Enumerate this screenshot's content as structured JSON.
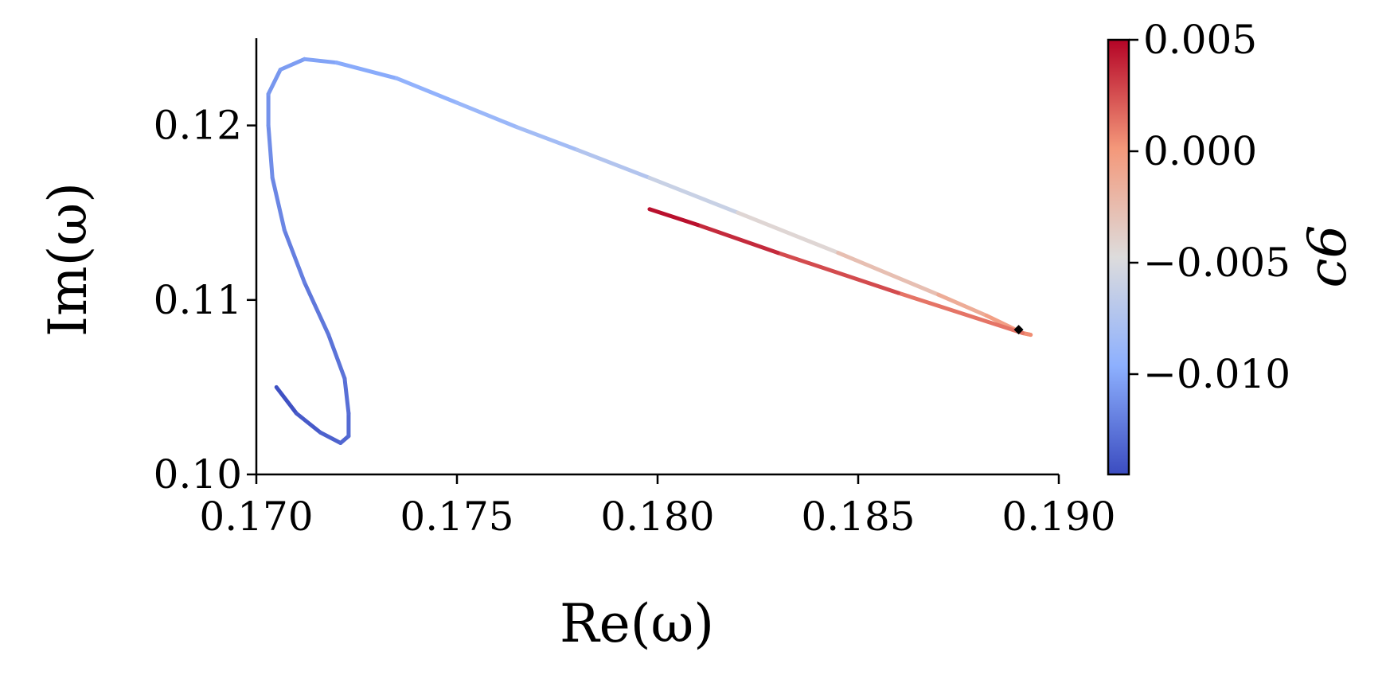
{
  "chart_data": {
    "type": "line",
    "xlabel": "Re(ω)",
    "ylabel": "Im(ω)",
    "xlim": [
      0.17,
      0.19
    ],
    "ylim": [
      0.1,
      0.125
    ],
    "xticks": [
      "0.170",
      "0.175",
      "0.180",
      "0.185",
      "0.190"
    ],
    "xtick_values": [
      0.17,
      0.175,
      0.18,
      0.185,
      0.19
    ],
    "yticks": [
      "0.10",
      "0.11",
      "0.12"
    ],
    "ytick_values": [
      0.1,
      0.11,
      0.12
    ],
    "grid": false,
    "colormap": "coolwarm",
    "colorbar": {
      "label": "c6",
      "range": [
        -0.0145,
        0.005
      ],
      "ticks": [
        "0.005",
        "0.000",
        "−0.005",
        "−0.010"
      ],
      "tick_values": [
        0.005,
        0.0,
        -0.005,
        -0.01
      ]
    },
    "series": [
      {
        "points": [
          {
            "x": 0.1705,
            "y": 0.105,
            "c": -0.0145
          },
          {
            "x": 0.171,
            "y": 0.1035,
            "c": -0.014
          },
          {
            "x": 0.1716,
            "y": 0.1024,
            "c": -0.0136
          },
          {
            "x": 0.1721,
            "y": 0.1018,
            "c": -0.0133
          },
          {
            "x": 0.1723,
            "y": 0.1022,
            "c": -0.0131
          },
          {
            "x": 0.1723,
            "y": 0.1035,
            "c": -0.0129
          },
          {
            "x": 0.1722,
            "y": 0.1055,
            "c": -0.0127
          },
          {
            "x": 0.1718,
            "y": 0.108,
            "c": -0.0125
          },
          {
            "x": 0.1712,
            "y": 0.111,
            "c": -0.0122
          },
          {
            "x": 0.1707,
            "y": 0.114,
            "c": -0.0118
          },
          {
            "x": 0.1704,
            "y": 0.117,
            "c": -0.0115
          },
          {
            "x": 0.1703,
            "y": 0.12,
            "c": -0.0112
          },
          {
            "x": 0.1703,
            "y": 0.1218,
            "c": -0.011
          },
          {
            "x": 0.1706,
            "y": 0.1232,
            "c": -0.0107
          },
          {
            "x": 0.1712,
            "y": 0.1238,
            "c": -0.0104
          },
          {
            "x": 0.172,
            "y": 0.1236,
            "c": -0.0101
          },
          {
            "x": 0.1735,
            "y": 0.1227,
            "c": -0.0096
          },
          {
            "x": 0.175,
            "y": 0.1213,
            "c": -0.0091
          },
          {
            "x": 0.1765,
            "y": 0.1199,
            "c": -0.0086
          },
          {
            "x": 0.178,
            "y": 0.1186,
            "c": -0.008
          },
          {
            "x": 0.1798,
            "y": 0.117,
            "c": -0.0068
          },
          {
            "x": 0.182,
            "y": 0.115,
            "c": -0.0052
          },
          {
            "x": 0.1845,
            "y": 0.1127,
            "c": -0.0035
          },
          {
            "x": 0.187,
            "y": 0.1103,
            "c": -0.0018
          },
          {
            "x": 0.1882,
            "y": 0.1091,
            "c": -0.0008
          },
          {
            "x": 0.1891,
            "y": 0.1081,
            "c": 0.0
          },
          {
            "x": 0.1893,
            "y": 0.108,
            "c": 0.0003
          },
          {
            "x": 0.1891,
            "y": 0.1081,
            "c": 0.0006
          },
          {
            "x": 0.186,
            "y": 0.1104,
            "c": 0.002
          },
          {
            "x": 0.183,
            "y": 0.1127,
            "c": 0.0033
          },
          {
            "x": 0.181,
            "y": 0.1143,
            "c": 0.0042
          },
          {
            "x": 0.1798,
            "y": 0.1152,
            "c": 0.005
          }
        ]
      }
    ],
    "marker": {
      "x": 0.189,
      "y": 0.1083,
      "color": "#000000",
      "shape": "diamond"
    }
  }
}
